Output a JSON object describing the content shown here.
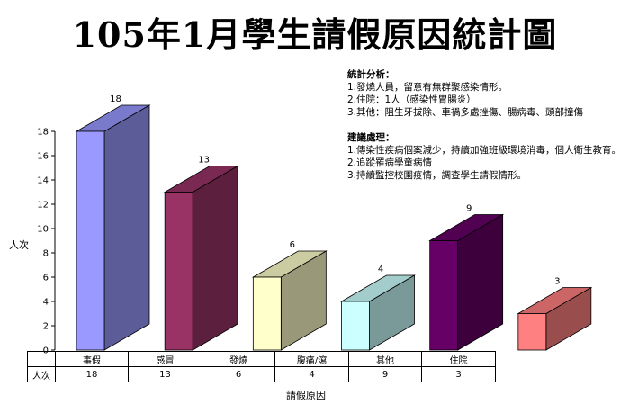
{
  "chart_data": {
    "type": "bar",
    "title": "105年1月學生請假原因統計圖",
    "xlabel": "請假原因",
    "ylabel": "人次",
    "ylim": [
      0,
      18
    ],
    "yticks": [
      0,
      2,
      4,
      6,
      8,
      10,
      12,
      14,
      16,
      18
    ],
    "categories": [
      "事假",
      "感冒",
      "發燒",
      "腹痛/瀉",
      "其他",
      "住院"
    ],
    "series": [
      {
        "name": "人次",
        "values": [
          18,
          13,
          6,
          4,
          9,
          3
        ]
      }
    ],
    "colors": [
      "#9999ff",
      "#993366",
      "#ffffcc",
      "#ccffff",
      "#660066",
      "#ff8080"
    ],
    "grid": false,
    "legend": "none"
  },
  "analysis": {
    "heading1": "統計分析：",
    "lines1": [
      "1.發燒人員，留意有無群聚感染情形。",
      "2.住院：1人（感染性胃腸炎）",
      "3.其他：阻生牙拔除、車禍多處挫傷、腸病毒、頭部撞傷"
    ],
    "heading2": "建議處理：",
    "lines2": [
      "1.傳染性疾病個案減少，持續加強班級環境消毒，個人衛生教育。",
      "2.追蹤罹病學童病情",
      "3.持續監控校園疫情，調查學生請假情形。"
    ]
  }
}
